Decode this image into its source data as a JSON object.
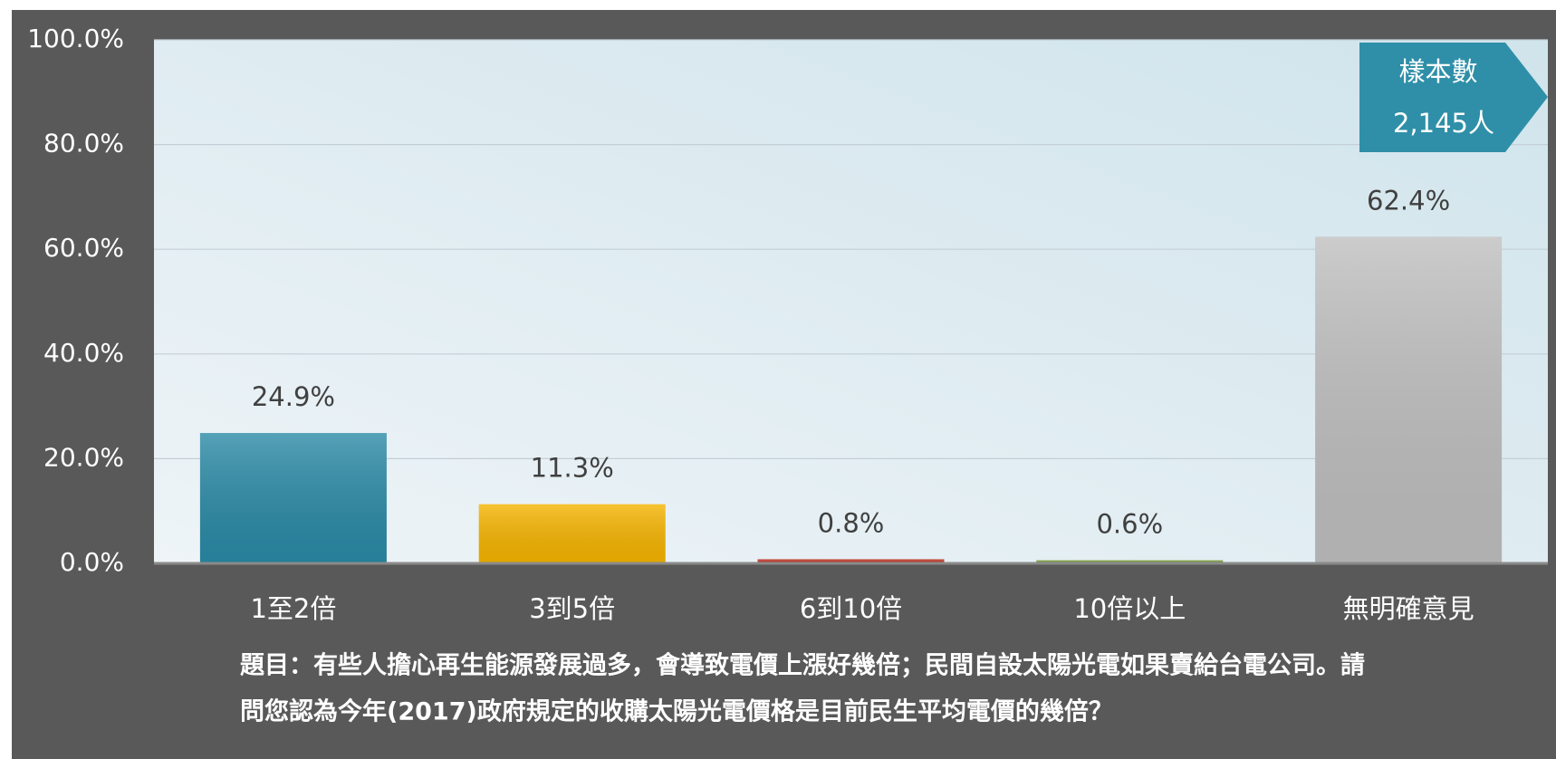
{
  "chart_data": {
    "type": "bar",
    "categories": [
      "1至2倍",
      "3到5倍",
      "6到10倍",
      "10倍以上",
      "無明確意見"
    ],
    "values": [
      24.9,
      11.3,
      0.8,
      0.6,
      62.4
    ],
    "value_labels": [
      "24.9%",
      "11.3%",
      "0.8%",
      "0.6%",
      "62.4%"
    ],
    "colors": [
      "#2a8aa6",
      "#f5b400",
      "#c0392b",
      "#7a9a3a",
      "#bfbfbf"
    ],
    "ylim": [
      0,
      100
    ],
    "yticks": [
      {
        "value": 0,
        "label": "0.0%"
      },
      {
        "value": 20,
        "label": "20.0%"
      },
      {
        "value": 40,
        "label": "40.0%"
      },
      {
        "value": 60,
        "label": "60.0%"
      },
      {
        "value": 80,
        "label": "80.0%"
      },
      {
        "value": 100,
        "label": "100.0%"
      }
    ],
    "grid": true,
    "annotation": {
      "label": "樣本數",
      "value": "2,145人"
    },
    "footnote_lines": [
      "題目：有些人擔心再生能源發展過多，會導致電價上漲好幾倍；民間自設太陽光電如果賣給台電公司。請",
      "問您認為今年(2017)政府規定的收購太陽光電價格是目前民生平均電價的幾倍？"
    ]
  }
}
